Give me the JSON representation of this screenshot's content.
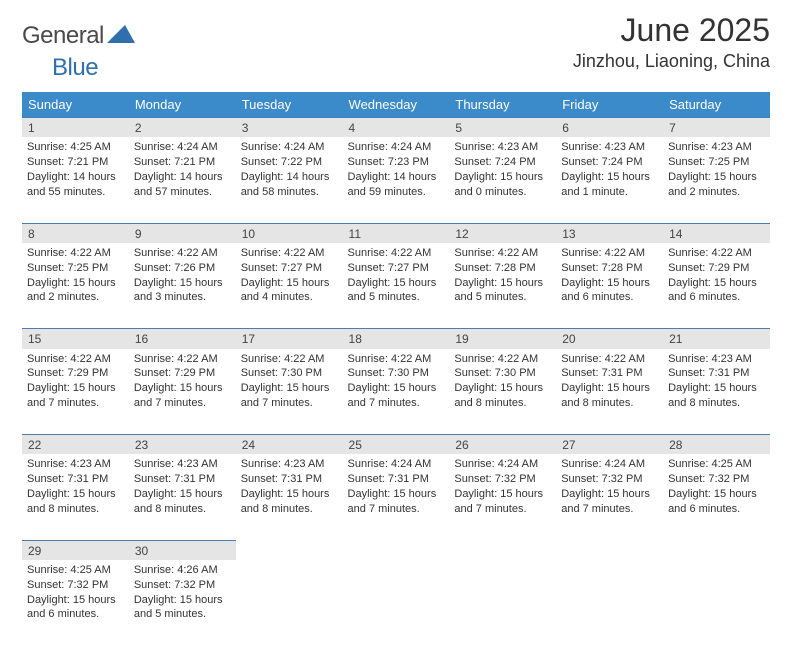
{
  "logo": {
    "text1": "General",
    "text2": "Blue",
    "accent_color": "#2f6fae"
  },
  "header": {
    "title": "June 2025",
    "location": "Jinzhou, Liaoning, China"
  },
  "style": {
    "header_bg": "#3b8bca",
    "daynum_bg": "#e5e5e5",
    "rule_color": "#4a7db5",
    "cell_font_size": 11,
    "header_font_size": 13,
    "title_font_size": 32,
    "location_font_size": 18
  },
  "weekdays": [
    "Sunday",
    "Monday",
    "Tuesday",
    "Wednesday",
    "Thursday",
    "Friday",
    "Saturday"
  ],
  "weeks": [
    [
      {
        "n": "1",
        "sr": "4:25 AM",
        "ss": "7:21 PM",
        "dl": "14 hours and 55 minutes."
      },
      {
        "n": "2",
        "sr": "4:24 AM",
        "ss": "7:21 PM",
        "dl": "14 hours and 57 minutes."
      },
      {
        "n": "3",
        "sr": "4:24 AM",
        "ss": "7:22 PM",
        "dl": "14 hours and 58 minutes."
      },
      {
        "n": "4",
        "sr": "4:24 AM",
        "ss": "7:23 PM",
        "dl": "14 hours and 59 minutes."
      },
      {
        "n": "5",
        "sr": "4:23 AM",
        "ss": "7:24 PM",
        "dl": "15 hours and 0 minutes."
      },
      {
        "n": "6",
        "sr": "4:23 AM",
        "ss": "7:24 PM",
        "dl": "15 hours and 1 minute."
      },
      {
        "n": "7",
        "sr": "4:23 AM",
        "ss": "7:25 PM",
        "dl": "15 hours and 2 minutes."
      }
    ],
    [
      {
        "n": "8",
        "sr": "4:22 AM",
        "ss": "7:25 PM",
        "dl": "15 hours and 2 minutes."
      },
      {
        "n": "9",
        "sr": "4:22 AM",
        "ss": "7:26 PM",
        "dl": "15 hours and 3 minutes."
      },
      {
        "n": "10",
        "sr": "4:22 AM",
        "ss": "7:27 PM",
        "dl": "15 hours and 4 minutes."
      },
      {
        "n": "11",
        "sr": "4:22 AM",
        "ss": "7:27 PM",
        "dl": "15 hours and 5 minutes."
      },
      {
        "n": "12",
        "sr": "4:22 AM",
        "ss": "7:28 PM",
        "dl": "15 hours and 5 minutes."
      },
      {
        "n": "13",
        "sr": "4:22 AM",
        "ss": "7:28 PM",
        "dl": "15 hours and 6 minutes."
      },
      {
        "n": "14",
        "sr": "4:22 AM",
        "ss": "7:29 PM",
        "dl": "15 hours and 6 minutes."
      }
    ],
    [
      {
        "n": "15",
        "sr": "4:22 AM",
        "ss": "7:29 PM",
        "dl": "15 hours and 7 minutes."
      },
      {
        "n": "16",
        "sr": "4:22 AM",
        "ss": "7:29 PM",
        "dl": "15 hours and 7 minutes."
      },
      {
        "n": "17",
        "sr": "4:22 AM",
        "ss": "7:30 PM",
        "dl": "15 hours and 7 minutes."
      },
      {
        "n": "18",
        "sr": "4:22 AM",
        "ss": "7:30 PM",
        "dl": "15 hours and 7 minutes."
      },
      {
        "n": "19",
        "sr": "4:22 AM",
        "ss": "7:30 PM",
        "dl": "15 hours and 8 minutes."
      },
      {
        "n": "20",
        "sr": "4:22 AM",
        "ss": "7:31 PM",
        "dl": "15 hours and 8 minutes."
      },
      {
        "n": "21",
        "sr": "4:23 AM",
        "ss": "7:31 PM",
        "dl": "15 hours and 8 minutes."
      }
    ],
    [
      {
        "n": "22",
        "sr": "4:23 AM",
        "ss": "7:31 PM",
        "dl": "15 hours and 8 minutes."
      },
      {
        "n": "23",
        "sr": "4:23 AM",
        "ss": "7:31 PM",
        "dl": "15 hours and 8 minutes."
      },
      {
        "n": "24",
        "sr": "4:23 AM",
        "ss": "7:31 PM",
        "dl": "15 hours and 8 minutes."
      },
      {
        "n": "25",
        "sr": "4:24 AM",
        "ss": "7:31 PM",
        "dl": "15 hours and 7 minutes."
      },
      {
        "n": "26",
        "sr": "4:24 AM",
        "ss": "7:32 PM",
        "dl": "15 hours and 7 minutes."
      },
      {
        "n": "27",
        "sr": "4:24 AM",
        "ss": "7:32 PM",
        "dl": "15 hours and 7 minutes."
      },
      {
        "n": "28",
        "sr": "4:25 AM",
        "ss": "7:32 PM",
        "dl": "15 hours and 6 minutes."
      }
    ],
    [
      {
        "n": "29",
        "sr": "4:25 AM",
        "ss": "7:32 PM",
        "dl": "15 hours and 6 minutes."
      },
      {
        "n": "30",
        "sr": "4:26 AM",
        "ss": "7:32 PM",
        "dl": "15 hours and 5 minutes."
      },
      null,
      null,
      null,
      null,
      null
    ]
  ],
  "labels": {
    "sunrise": "Sunrise: ",
    "sunset": "Sunset: ",
    "daylight": "Daylight: "
  }
}
